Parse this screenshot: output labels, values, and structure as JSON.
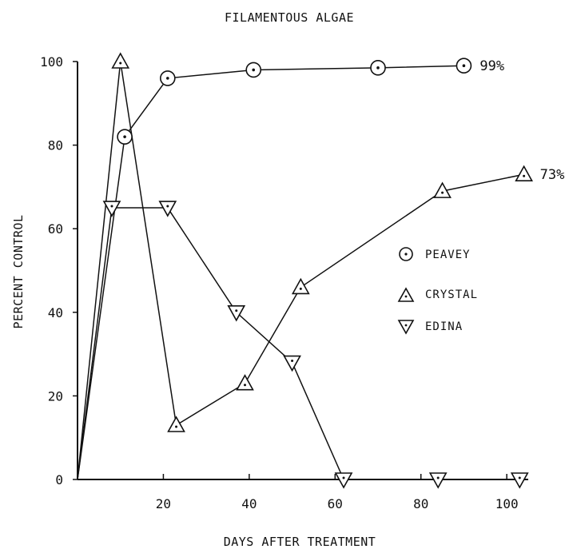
{
  "chart_data": {
    "type": "line",
    "title": "FILAMENTOUS ALGAE",
    "xlabel": "DAYS AFTER TREATMENT",
    "ylabel": "PERCENT CONTROL",
    "xlim": [
      0,
      105
    ],
    "ylim": [
      0,
      100
    ],
    "xticks": [
      "20",
      "40",
      "60",
      "80",
      "100"
    ],
    "yticks": [
      "0",
      "20",
      "40",
      "60",
      "80",
      "100"
    ],
    "legend_position": "right",
    "series": [
      {
        "name": "PEAVEY",
        "marker": "circle-dot",
        "x": [
          0,
          11,
          21,
          41,
          70,
          90
        ],
        "y": [
          0,
          82,
          96,
          98,
          98.5,
          99
        ]
      },
      {
        "name": "CRYSTAL",
        "marker": "triangle-up-dot",
        "x": [
          0,
          10,
          23,
          39,
          52,
          85,
          104
        ],
        "y": [
          0,
          100,
          13,
          23,
          46,
          69,
          73
        ]
      },
      {
        "name": "EDINA",
        "marker": "triangle-down-dot",
        "x": [
          0,
          8,
          21,
          37,
          50,
          62,
          84,
          103
        ],
        "y": [
          0,
          65,
          65,
          40,
          28,
          0,
          0,
          0
        ]
      }
    ],
    "annotations": [
      {
        "series": "PEAVEY",
        "text": "99%"
      },
      {
        "series": "CRYSTAL",
        "text": "73%"
      }
    ]
  }
}
